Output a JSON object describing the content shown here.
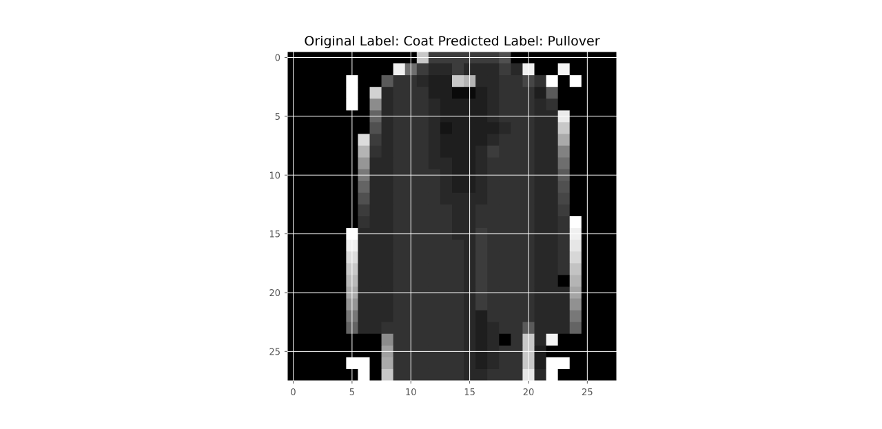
{
  "chart_data": {
    "type": "heatmap",
    "title": "Original Label: Coat  Predicted Label: Pullover",
    "colormap": "gray",
    "vmin": 0,
    "vmax": 255,
    "grid": true,
    "grid_color": "#ffffff",
    "background_color": "#ffffff",
    "x_ticks": [
      0,
      5,
      10,
      15,
      20,
      25
    ],
    "y_ticks": [
      0,
      5,
      10,
      15,
      20,
      25
    ],
    "xlim": [
      -0.5,
      27.5
    ],
    "ylim": [
      27.5,
      -0.5
    ],
    "rows": 28,
    "cols": 28,
    "values": [
      [
        0,
        0,
        0,
        0,
        0,
        0,
        0,
        0,
        0,
        0,
        0,
        200,
        60,
        60,
        60,
        60,
        60,
        60,
        80,
        0,
        0,
        0,
        0,
        0,
        0,
        0,
        0,
        0
      ],
      [
        0,
        0,
        0,
        0,
        0,
        0,
        0,
        0,
        0,
        240,
        110,
        60,
        40,
        40,
        60,
        40,
        40,
        40,
        60,
        40,
        240,
        0,
        0,
        245,
        0,
        0,
        0,
        0
      ],
      [
        0,
        0,
        0,
        0,
        0,
        255,
        0,
        0,
        90,
        50,
        50,
        40,
        30,
        30,
        200,
        180,
        40,
        40,
        50,
        50,
        70,
        50,
        255,
        0,
        255,
        0,
        0,
        0
      ],
      [
        0,
        0,
        0,
        0,
        0,
        255,
        0,
        210,
        40,
        50,
        50,
        50,
        30,
        30,
        10,
        10,
        30,
        40,
        50,
        50,
        50,
        30,
        90,
        0,
        0,
        0,
        0,
        0
      ],
      [
        0,
        0,
        0,
        0,
        0,
        255,
        0,
        140,
        40,
        50,
        50,
        50,
        40,
        30,
        30,
        30,
        30,
        40,
        50,
        50,
        50,
        40,
        50,
        0,
        0,
        0,
        0,
        0
      ],
      [
        0,
        0,
        0,
        0,
        0,
        0,
        0,
        100,
        40,
        50,
        50,
        50,
        40,
        30,
        30,
        30,
        30,
        40,
        50,
        50,
        50,
        40,
        40,
        235,
        0,
        0,
        0,
        0
      ],
      [
        0,
        0,
        0,
        0,
        0,
        0,
        0,
        80,
        40,
        50,
        50,
        50,
        40,
        20,
        30,
        30,
        30,
        30,
        40,
        50,
        50,
        40,
        40,
        200,
        0,
        0,
        0,
        0
      ],
      [
        0,
        0,
        0,
        0,
        0,
        0,
        220,
        60,
        40,
        50,
        50,
        50,
        40,
        30,
        30,
        30,
        30,
        40,
        50,
        50,
        50,
        40,
        40,
        170,
        0,
        0,
        0,
        0
      ],
      [
        0,
        0,
        0,
        0,
        0,
        0,
        180,
        50,
        40,
        50,
        50,
        50,
        40,
        30,
        30,
        30,
        40,
        60,
        50,
        50,
        50,
        40,
        40,
        130,
        0,
        0,
        0,
        0
      ],
      [
        0,
        0,
        0,
        0,
        0,
        0,
        150,
        40,
        40,
        50,
        50,
        50,
        40,
        40,
        30,
        30,
        40,
        50,
        50,
        50,
        50,
        40,
        40,
        110,
        0,
        0,
        0,
        0
      ],
      [
        0,
        0,
        0,
        0,
        0,
        0,
        120,
        40,
        40,
        50,
        50,
        50,
        50,
        40,
        30,
        30,
        40,
        50,
        50,
        50,
        50,
        40,
        40,
        90,
        0,
        0,
        0,
        0
      ],
      [
        0,
        0,
        0,
        0,
        0,
        0,
        100,
        40,
        40,
        50,
        50,
        50,
        50,
        40,
        30,
        30,
        40,
        50,
        50,
        50,
        50,
        40,
        40,
        80,
        0,
        0,
        0,
        0
      ],
      [
        0,
        0,
        0,
        0,
        0,
        0,
        80,
        40,
        40,
        50,
        50,
        50,
        50,
        40,
        40,
        40,
        40,
        50,
        50,
        50,
        50,
        40,
        40,
        70,
        0,
        0,
        0,
        0
      ],
      [
        0,
        0,
        0,
        0,
        0,
        0,
        60,
        40,
        40,
        50,
        50,
        50,
        50,
        50,
        40,
        40,
        50,
        50,
        50,
        50,
        50,
        40,
        40,
        60,
        0,
        0,
        0,
        0
      ],
      [
        0,
        0,
        0,
        0,
        0,
        0,
        50,
        40,
        40,
        50,
        50,
        50,
        50,
        50,
        40,
        40,
        50,
        50,
        50,
        50,
        50,
        40,
        40,
        50,
        255,
        0,
        0,
        0
      ],
      [
        0,
        0,
        0,
        0,
        0,
        255,
        40,
        40,
        40,
        50,
        50,
        50,
        50,
        50,
        40,
        40,
        60,
        50,
        50,
        50,
        50,
        40,
        40,
        50,
        240,
        0,
        0,
        0
      ],
      [
        0,
        0,
        0,
        0,
        0,
        240,
        40,
        40,
        40,
        50,
        50,
        50,
        50,
        50,
        50,
        40,
        60,
        50,
        50,
        50,
        50,
        40,
        40,
        50,
        230,
        0,
        0,
        0
      ],
      [
        0,
        0,
        0,
        0,
        0,
        220,
        40,
        40,
        40,
        50,
        50,
        50,
        50,
        50,
        50,
        40,
        60,
        50,
        50,
        50,
        50,
        40,
        40,
        50,
        215,
        0,
        0,
        0
      ],
      [
        0,
        0,
        0,
        0,
        0,
        200,
        40,
        40,
        40,
        50,
        50,
        50,
        50,
        50,
        50,
        40,
        60,
        50,
        50,
        50,
        50,
        40,
        40,
        50,
        195,
        0,
        0,
        0
      ],
      [
        0,
        0,
        0,
        0,
        0,
        185,
        40,
        40,
        40,
        50,
        50,
        50,
        50,
        50,
        50,
        40,
        60,
        50,
        50,
        50,
        50,
        40,
        40,
        0,
        180,
        0,
        0,
        0
      ],
      [
        0,
        0,
        0,
        0,
        0,
        170,
        40,
        40,
        40,
        50,
        50,
        50,
        50,
        50,
        50,
        40,
        60,
        50,
        50,
        50,
        50,
        40,
        40,
        40,
        165,
        0,
        0,
        0
      ],
      [
        0,
        0,
        0,
        0,
        0,
        150,
        40,
        40,
        40,
        50,
        50,
        50,
        50,
        50,
        50,
        40,
        60,
        50,
        50,
        50,
        50,
        40,
        40,
        40,
        145,
        0,
        0,
        0
      ],
      [
        0,
        0,
        0,
        0,
        0,
        120,
        40,
        40,
        40,
        50,
        50,
        50,
        50,
        50,
        50,
        40,
        30,
        50,
        50,
        50,
        50,
        40,
        40,
        40,
        120,
        0,
        0,
        0
      ],
      [
        0,
        0,
        0,
        0,
        0,
        100,
        40,
        40,
        50,
        50,
        50,
        50,
        50,
        50,
        50,
        40,
        30,
        40,
        50,
        50,
        90,
        40,
        40,
        40,
        100,
        0,
        0,
        0
      ],
      [
        0,
        0,
        0,
        0,
        0,
        0,
        0,
        0,
        140,
        50,
        50,
        50,
        50,
        50,
        50,
        40,
        30,
        40,
        0,
        50,
        200,
        40,
        245,
        0,
        0,
        0,
        0,
        0
      ],
      [
        0,
        0,
        0,
        0,
        0,
        0,
        0,
        0,
        160,
        50,
        50,
        50,
        50,
        50,
        50,
        40,
        30,
        40,
        50,
        50,
        200,
        30,
        0,
        0,
        0,
        0,
        0,
        0
      ],
      [
        0,
        0,
        0,
        0,
        0,
        255,
        255,
        0,
        170,
        50,
        50,
        50,
        50,
        50,
        50,
        40,
        30,
        40,
        50,
        50,
        200,
        30,
        255,
        255,
        0,
        0,
        0,
        0
      ],
      [
        0,
        0,
        0,
        0,
        0,
        0,
        255,
        0,
        200,
        50,
        50,
        50,
        50,
        50,
        50,
        40,
        40,
        50,
        50,
        50,
        230,
        40,
        255,
        0,
        0,
        0,
        0,
        0
      ]
    ]
  }
}
